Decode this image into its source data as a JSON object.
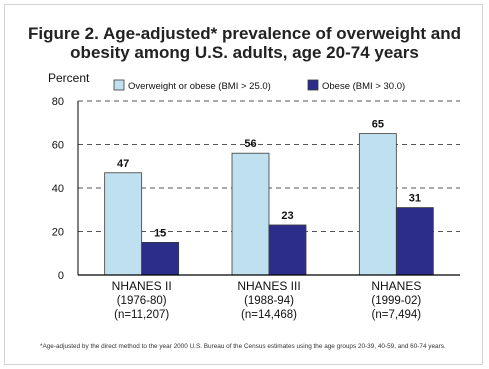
{
  "title": {
    "line1": "Figure 2. Age-adjusted* prevalence of overweight and",
    "line2": "obesity among U.S. adults, age 20-74 years"
  },
  "footnote": "*Age-adjusted by the direct method to the year 2000 U.S. Bureau of the Census estimates using the age groups 20-39, 40-59, and 60-74 years.",
  "colors": {
    "overweight_fill": "#bfe0ee",
    "obese_fill": "#2c2c8a",
    "bar_stroke": "#3a3a3a",
    "grid": "#555555",
    "axis": "#000000",
    "text": "#111111"
  },
  "chart_data": {
    "type": "bar",
    "ylabel": "Percent",
    "ylim": [
      0,
      80
    ],
    "yticks": [
      0,
      20,
      40,
      60,
      80
    ],
    "grid": true,
    "grid_style": "dashed",
    "legend_position": "top",
    "categories": [
      [
        "NHANES II",
        "(1976-80)",
        "(n=11,207)"
      ],
      [
        "NHANES III",
        "(1988-94)",
        "(n=14,468)"
      ],
      [
        "NHANES",
        "(1999-02)",
        "(n=7,494)"
      ]
    ],
    "series": [
      {
        "name": "Overweight or obese (BMI > 25.0)",
        "values": [
          47,
          56,
          65
        ]
      },
      {
        "name": "Obese (BMI > 30.0)",
        "values": [
          15,
          23,
          31
        ]
      }
    ]
  }
}
